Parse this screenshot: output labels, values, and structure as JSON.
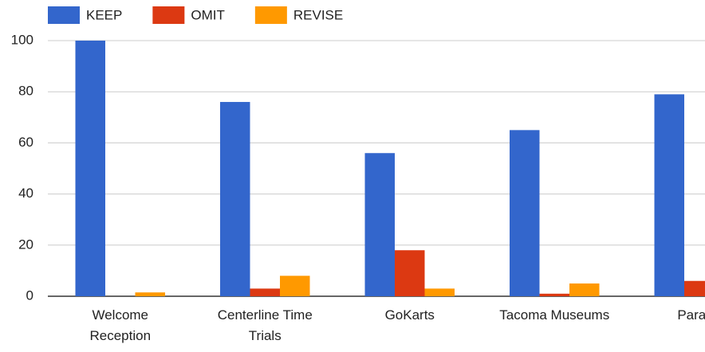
{
  "chart_data": {
    "type": "bar",
    "categories": [
      "Welcome Reception",
      "Centerline Time Trials",
      "GoKarts",
      "Tacoma Museums",
      "Parade"
    ],
    "series": [
      {
        "name": "KEEP",
        "color": "#3366cc",
        "values": [
          100,
          76,
          56,
          65,
          79
        ]
      },
      {
        "name": "OMIT",
        "color": "#dc3912",
        "values": [
          0,
          3,
          18,
          1,
          6
        ]
      },
      {
        "name": "REVISE",
        "color": "#ff9900",
        "values": [
          1.5,
          8,
          3,
          5,
          null
        ]
      }
    ],
    "ylim": [
      0,
      100
    ],
    "yticks": [
      0,
      20,
      40,
      60,
      80,
      100
    ],
    "grid": true,
    "legend": "top"
  }
}
